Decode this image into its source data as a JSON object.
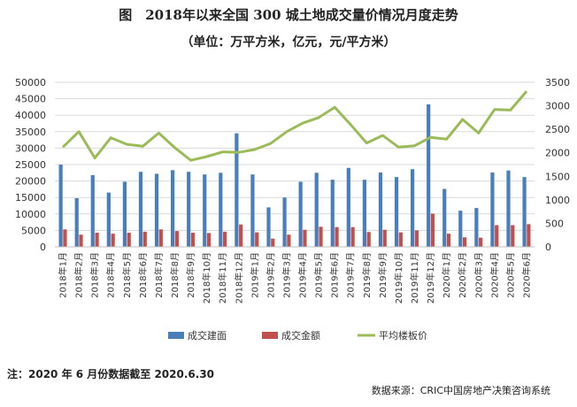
{
  "title": "图　2018年以来全国 300 城土地成交量价情况月度走势",
  "subtitle": "（单位：万平方米，亿元，元/平方米）",
  "note": "注：2020 年 6 月份数据截至 2020.6.30",
  "source": "数据来源：CRIC中国房地产决策咨询系统",
  "colors": {
    "area": "#4a7ebb",
    "amount": "#c0504d",
    "price": "#9bbb59",
    "grid": "#d9d9d9",
    "axis": "#bfbfbf"
  },
  "chart_data": {
    "type": "bar",
    "categories": [
      "2018年1月",
      "2018年2月",
      "2018年3月",
      "2018年4月",
      "2018年5月",
      "2018年6月",
      "2018年7月",
      "2018年8月",
      "2018年9月",
      "2018年10月",
      "2018年11月",
      "2018年12月",
      "2019年1月",
      "2019年2月",
      "2019年3月",
      "2019年4月",
      "2019年5月",
      "2019年6月",
      "2019年7月",
      "2019年8月",
      "2019年9月",
      "2019年10月",
      "2019年11月",
      "2019年12月",
      "2020年1月",
      "2020年2月",
      "2020年3月",
      "2020年4月",
      "2020年5月",
      "2020年6月"
    ],
    "series": [
      {
        "name": "成交建面",
        "type": "bar",
        "axis": "left",
        "values": [
          25000,
          14800,
          21800,
          16500,
          19800,
          22800,
          22200,
          23300,
          22800,
          22000,
          22500,
          34500,
          22000,
          12000,
          15000,
          19800,
          22500,
          20400,
          24000,
          20400,
          22600,
          21200,
          23600,
          43300,
          17600,
          11000,
          11800,
          22600,
          23200,
          21200
        ]
      },
      {
        "name": "成交金额",
        "type": "bar",
        "axis": "left",
        "values": [
          5300,
          3700,
          4300,
          4000,
          4300,
          4600,
          5300,
          4800,
          4300,
          4200,
          4600,
          6800,
          4400,
          2500,
          3700,
          5200,
          6100,
          6000,
          6000,
          4500,
          5200,
          4400,
          5000,
          10100,
          4000,
          2900,
          2800,
          6600,
          6600,
          6900
        ]
      },
      {
        "name": "平均楼板价",
        "type": "line",
        "axis": "right",
        "values": [
          2120,
          2450,
          1890,
          2320,
          2180,
          2140,
          2420,
          2110,
          1840,
          1920,
          2020,
          2010,
          2070,
          2200,
          2450,
          2630,
          2750,
          2970,
          2600,
          2210,
          2370,
          2120,
          2150,
          2330,
          2290,
          2710,
          2420,
          2920,
          2910,
          3310
        ]
      }
    ],
    "y_left": {
      "min": 0,
      "max": 50000,
      "ticks": [
        0,
        5000,
        10000,
        15000,
        20000,
        25000,
        30000,
        35000,
        40000,
        45000,
        50000
      ]
    },
    "y_right": {
      "min": 0,
      "max": 3500,
      "ticks": [
        0,
        500,
        1000,
        1500,
        2000,
        2500,
        3000,
        3500
      ]
    },
    "grid": true,
    "legend_position": "bottom"
  }
}
